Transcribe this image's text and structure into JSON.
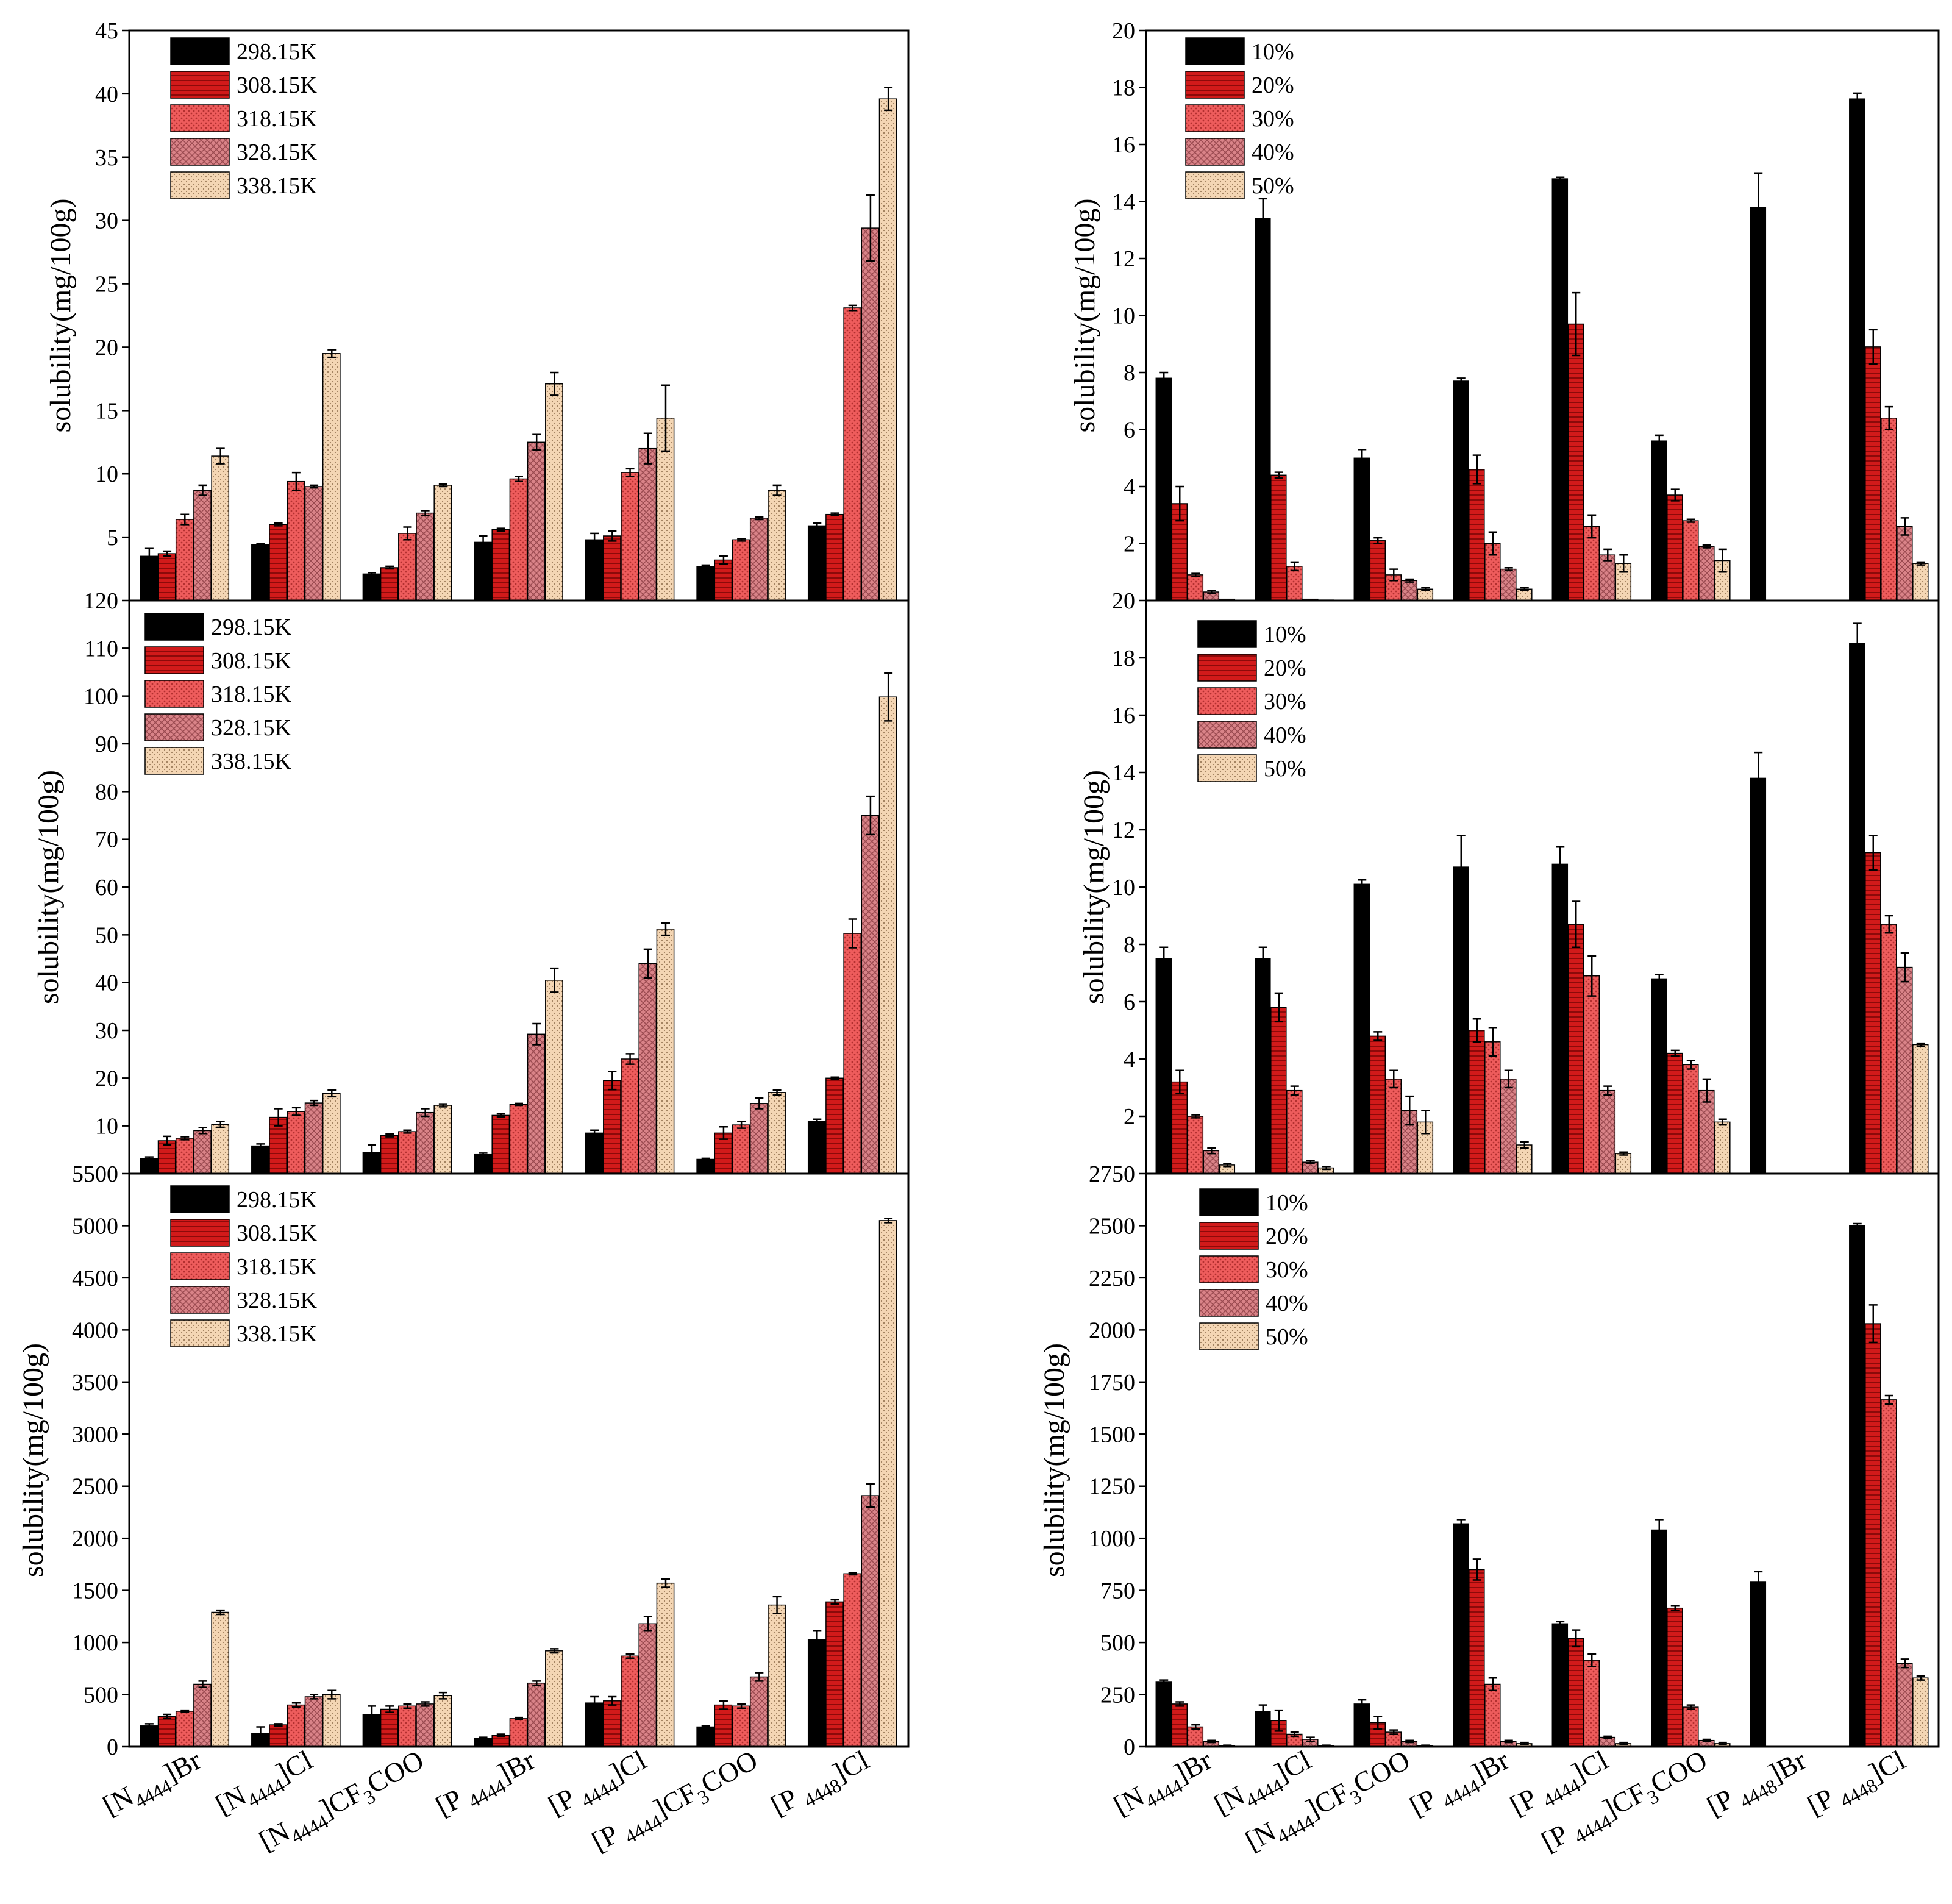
{
  "colors": {
    "black": "#000000",
    "dark_red": "#d11a1a",
    "red": "#ee5c5c",
    "pink": "#d98388",
    "beige": "#f4d6b4"
  },
  "categories": [
    {
      "pre": "[N",
      "sub": "4444",
      "post": "]Br"
    },
    {
      "pre": "[N",
      "sub": "4444",
      "post": "]Cl"
    },
    {
      "pre": "[N",
      "sub": "4444",
      "post": "]CF",
      "sub2": "3",
      "post2": "COO"
    },
    {
      "pre": "[P ",
      "sub": "4444",
      "post": "]Br"
    },
    {
      "pre": "[P ",
      "sub": "4444",
      "post": "]Cl"
    },
    {
      "pre": "[P ",
      "sub": "4444",
      "post": "]CF",
      "sub2": "3",
      "post2": "COO"
    },
    {
      "pre": "[P ",
      "sub": "4448",
      "post": "]Br"
    },
    {
      "pre": "[P ",
      "sub": "4448",
      "post": "]Cl"
    }
  ],
  "chart_data": [
    {
      "type": "bar",
      "panel": "left-top",
      "ylabel": "solubility(mg/100g)",
      "ylim": [
        0,
        45
      ],
      "yticks": [
        5,
        10,
        15,
        20,
        25,
        30,
        35,
        40,
        45
      ],
      "categories": [
        "[N4444]Br",
        "[N4444]Cl",
        "[N4444]CF3COO",
        "[P4444]Br",
        "[P4444]Cl",
        "[P4444]CF3COO",
        "[P4448]Cl"
      ],
      "legend": "top-left",
      "series": [
        {
          "name": "298.15K",
          "values": [
            3.5,
            4.4,
            2.1,
            4.6,
            4.8,
            2.7,
            5.9
          ],
          "errors": [
            0.6,
            0.1,
            0.1,
            0.5,
            0.5,
            0.1,
            0.2
          ]
        },
        {
          "name": "308.15K",
          "values": [
            3.7,
            6.0,
            2.6,
            5.6,
            5.1,
            3.2,
            6.8
          ],
          "errors": [
            0.2,
            0.1,
            0.1,
            0.1,
            0.4,
            0.3,
            0.1
          ]
        },
        {
          "name": "318.15K",
          "values": [
            6.4,
            9.4,
            5.3,
            9.6,
            10.1,
            4.8,
            23.1
          ],
          "errors": [
            0.4,
            0.7,
            0.5,
            0.2,
            0.3,
            0.1,
            0.2
          ]
        },
        {
          "name": "328.15K",
          "values": [
            8.7,
            9.0,
            6.9,
            12.5,
            12.0,
            6.5,
            29.4
          ],
          "errors": [
            0.4,
            0.1,
            0.2,
            0.6,
            1.2,
            0.1,
            2.6
          ]
        },
        {
          "name": "338.15K",
          "values": [
            11.4,
            19.5,
            9.1,
            17.1,
            14.4,
            8.7,
            39.6
          ],
          "errors": [
            0.6,
            0.3,
            0.1,
            0.9,
            2.6,
            0.4,
            0.9
          ]
        }
      ]
    },
    {
      "type": "bar",
      "panel": "left-middle",
      "ylabel": "solubility(mg/100g)",
      "ylim": [
        0,
        120
      ],
      "yticks": [
        10,
        20,
        30,
        40,
        50,
        60,
        70,
        80,
        90,
        100,
        110,
        120
      ],
      "categories": [
        "[N4444]Br",
        "[N4444]Cl",
        "[N4444]CF3COO",
        "[P4444]Br",
        "[P4444]Cl",
        "[P4444]CF3COO",
        "[P4448]Cl"
      ],
      "legend": "top-left",
      "series": [
        {
          "name": "298.15K",
          "values": [
            3.2,
            5.8,
            4.5,
            4.0,
            8.5,
            3.0,
            11.0
          ],
          "errors": [
            0.3,
            0.4,
            1.5,
            0.3,
            0.6,
            0.2,
            0.4
          ]
        },
        {
          "name": "308.15K",
          "values": [
            6.9,
            11.8,
            8.0,
            12.2,
            19.5,
            8.5,
            20.0
          ],
          "errors": [
            0.9,
            1.8,
            0.3,
            0.3,
            1.9,
            1.3,
            0.2
          ]
        },
        {
          "name": "318.15K",
          "values": [
            7.4,
            13.0,
            8.8,
            14.5,
            24.0,
            10.2,
            50.3
          ],
          "errors": [
            0.3,
            0.8,
            0.3,
            0.2,
            1.1,
            0.7,
            3.0
          ]
        },
        {
          "name": "328.15K",
          "values": [
            9.0,
            14.8,
            12.8,
            29.2,
            44.0,
            14.7,
            75.0
          ],
          "errors": [
            0.6,
            0.5,
            0.8,
            2.2,
            3.0,
            1.1,
            4.0
          ]
        },
        {
          "name": "338.15K",
          "values": [
            10.3,
            16.8,
            14.3,
            40.5,
            51.2,
            17.0,
            99.8
          ],
          "errors": [
            0.6,
            0.7,
            0.3,
            2.5,
            1.3,
            0.5,
            5.0
          ]
        }
      ]
    },
    {
      "type": "bar",
      "panel": "left-bottom",
      "ylabel": "solubility(mg/100g)",
      "ylim": [
        0,
        5500
      ],
      "yticks": [
        0,
        500,
        1000,
        1500,
        2000,
        2500,
        3000,
        3500,
        4000,
        4500,
        5000,
        5500
      ],
      "categories": [
        "[N4444]Br",
        "[N4444]Cl",
        "[N4444]CF3COO",
        "[P4444]Br",
        "[P4444]Cl",
        "[P4444]CF3COO",
        "[P4448]Cl"
      ],
      "legend": "top-left",
      "series": [
        {
          "name": "298.15K",
          "values": [
            200,
            130,
            310,
            80,
            420,
            190,
            1030
          ],
          "errors": [
            20,
            60,
            80,
            10,
            60,
            10,
            80
          ]
        },
        {
          "name": "308.15K",
          "values": [
            290,
            210,
            360,
            110,
            440,
            400,
            1390
          ],
          "errors": [
            20,
            10,
            30,
            10,
            40,
            40,
            20
          ]
        },
        {
          "name": "318.15K",
          "values": [
            340,
            400,
            390,
            270,
            870,
            390,
            1660
          ],
          "errors": [
            10,
            20,
            20,
            10,
            20,
            20,
            10
          ]
        },
        {
          "name": "328.15K",
          "values": [
            600,
            480,
            410,
            610,
            1180,
            670,
            2410
          ],
          "errors": [
            30,
            20,
            20,
            20,
            70,
            40,
            110
          ]
        },
        {
          "name": "338.15K",
          "values": [
            1290,
            500,
            490,
            920,
            1570,
            1360,
            5050
          ],
          "errors": [
            20,
            40,
            30,
            20,
            40,
            80,
            20
          ]
        }
      ]
    },
    {
      "type": "bar",
      "panel": "right-top",
      "ylabel": "solubility(mg/100g)",
      "ylim": [
        0,
        20
      ],
      "yticks": [
        2,
        4,
        6,
        8,
        10,
        12,
        14,
        16,
        18,
        20
      ],
      "categories": [
        "[N4444]Br",
        "[N4444]Cl",
        "[N4444]CF3COO",
        "[P4444]Br",
        "[P4444]Cl",
        "[P4444]CF3COO",
        "[P4448]Br",
        "[P4448]Cl"
      ],
      "legend": "top-left",
      "series": [
        {
          "name": "10%",
          "values": [
            7.8,
            13.4,
            5.0,
            7.7,
            14.8,
            5.6,
            13.8,
            17.6
          ],
          "errors": [
            0.2,
            0.7,
            0.3,
            0.1,
            0.05,
            0.2,
            1.2,
            0.2
          ]
        },
        {
          "name": "20%",
          "values": [
            3.4,
            4.4,
            2.1,
            4.6,
            9.7,
            3.7,
            0,
            8.9
          ],
          "errors": [
            0.6,
            0.1,
            0.1,
            0.5,
            1.1,
            0.2,
            0,
            0.6
          ]
        },
        {
          "name": "30%",
          "values": [
            0.9,
            1.2,
            0.9,
            2.0,
            2.6,
            2.8,
            0,
            6.4
          ],
          "errors": [
            0.05,
            0.15,
            0.2,
            0.4,
            0.4,
            0.05,
            0,
            0.4
          ]
        },
        {
          "name": "40%",
          "values": [
            0.3,
            0.05,
            0.7,
            1.1,
            1.6,
            1.9,
            0,
            2.6
          ],
          "errors": [
            0.05,
            0,
            0.05,
            0.05,
            0.2,
            0.05,
            0,
            0.3
          ]
        },
        {
          "name": "50%",
          "values": [
            0.05,
            0.02,
            0.4,
            0.4,
            1.3,
            1.4,
            0,
            1.3
          ],
          "errors": [
            0,
            0,
            0.05,
            0.05,
            0.3,
            0.4,
            0,
            0.05
          ]
        }
      ]
    },
    {
      "type": "bar",
      "panel": "right-middle",
      "ylabel": "solubility(mg/100g)",
      "ylim": [
        0,
        20
      ],
      "yticks": [
        2,
        4,
        6,
        8,
        10,
        12,
        14,
        16,
        18,
        20
      ],
      "categories": [
        "[N4444]Br",
        "[N4444]Cl",
        "[N4444]CF3COO",
        "[P4444]Br",
        "[P4444]Cl",
        "[P4444]CF3COO",
        "[P4448]Br",
        "[P4448]Cl"
      ],
      "legend": "top-left",
      "series": [
        {
          "name": "10%",
          "values": [
            7.5,
            7.5,
            10.1,
            10.7,
            10.8,
            6.8,
            13.8,
            18.5
          ],
          "errors": [
            0.4,
            0.4,
            0.15,
            1.1,
            0.6,
            0.15,
            0.9,
            0.7
          ]
        },
        {
          "name": "20%",
          "values": [
            3.2,
            5.8,
            4.8,
            5.0,
            8.7,
            4.2,
            0,
            11.2
          ],
          "errors": [
            0.4,
            0.5,
            0.15,
            0.4,
            0.8,
            0.1,
            0,
            0.6
          ]
        },
        {
          "name": "30%",
          "values": [
            2.0,
            2.9,
            3.3,
            4.6,
            6.9,
            3.8,
            0,
            8.7
          ],
          "errors": [
            0.05,
            0.15,
            0.3,
            0.5,
            0.7,
            0.15,
            0,
            0.3
          ]
        },
        {
          "name": "40%",
          "values": [
            0.8,
            0.4,
            2.2,
            3.3,
            2.9,
            2.9,
            0,
            7.2
          ],
          "errors": [
            0.1,
            0.05,
            0.5,
            0.3,
            0.15,
            0.4,
            0,
            0.5
          ]
        },
        {
          "name": "50%",
          "values": [
            0.3,
            0.2,
            1.8,
            1.0,
            0.7,
            1.8,
            0,
            4.5
          ],
          "errors": [
            0.05,
            0.05,
            0.4,
            0.1,
            0.05,
            0.1,
            0,
            0.05
          ]
        }
      ]
    },
    {
      "type": "bar",
      "panel": "right-bottom",
      "ylabel": "solubility(mg/100g)",
      "ylim": [
        0,
        2750
      ],
      "yticks": [
        0,
        250,
        500,
        750,
        1000,
        1250,
        1500,
        1750,
        2000,
        2250,
        2500,
        2750
      ],
      "categories": [
        "[N4444]Br",
        "[N4444]Cl",
        "[N4444]CF3COO",
        "[P4444]Br",
        "[P4444]Cl",
        "[P4444]CF3COO",
        "[P4448]Br",
        "[P4448]Cl"
      ],
      "legend": "top-left",
      "series": [
        {
          "name": "10%",
          "values": [
            310,
            170,
            205,
            1070,
            590,
            1040,
            790,
            2500
          ],
          "errors": [
            10,
            30,
            20,
            20,
            10,
            50,
            50,
            10
          ]
        },
        {
          "name": "20%",
          "values": [
            205,
            125,
            115,
            850,
            520,
            665,
            0,
            2030
          ],
          "errors": [
            10,
            50,
            30,
            50,
            40,
            10,
            0,
            90
          ]
        },
        {
          "name": "30%",
          "values": [
            95,
            60,
            70,
            300,
            415,
            190,
            0,
            1665
          ],
          "errors": [
            10,
            10,
            10,
            30,
            30,
            10,
            0,
            20
          ]
        },
        {
          "name": "40%",
          "values": [
            25,
            35,
            25,
            25,
            45,
            30,
            0,
            400
          ],
          "errors": [
            5,
            10,
            5,
            5,
            5,
            5,
            0,
            20
          ]
        },
        {
          "name": "50%",
          "values": [
            5,
            5,
            5,
            15,
            15,
            15,
            0,
            330
          ],
          "errors": [
            2,
            2,
            2,
            5,
            5,
            5,
            0,
            10
          ]
        }
      ]
    }
  ]
}
